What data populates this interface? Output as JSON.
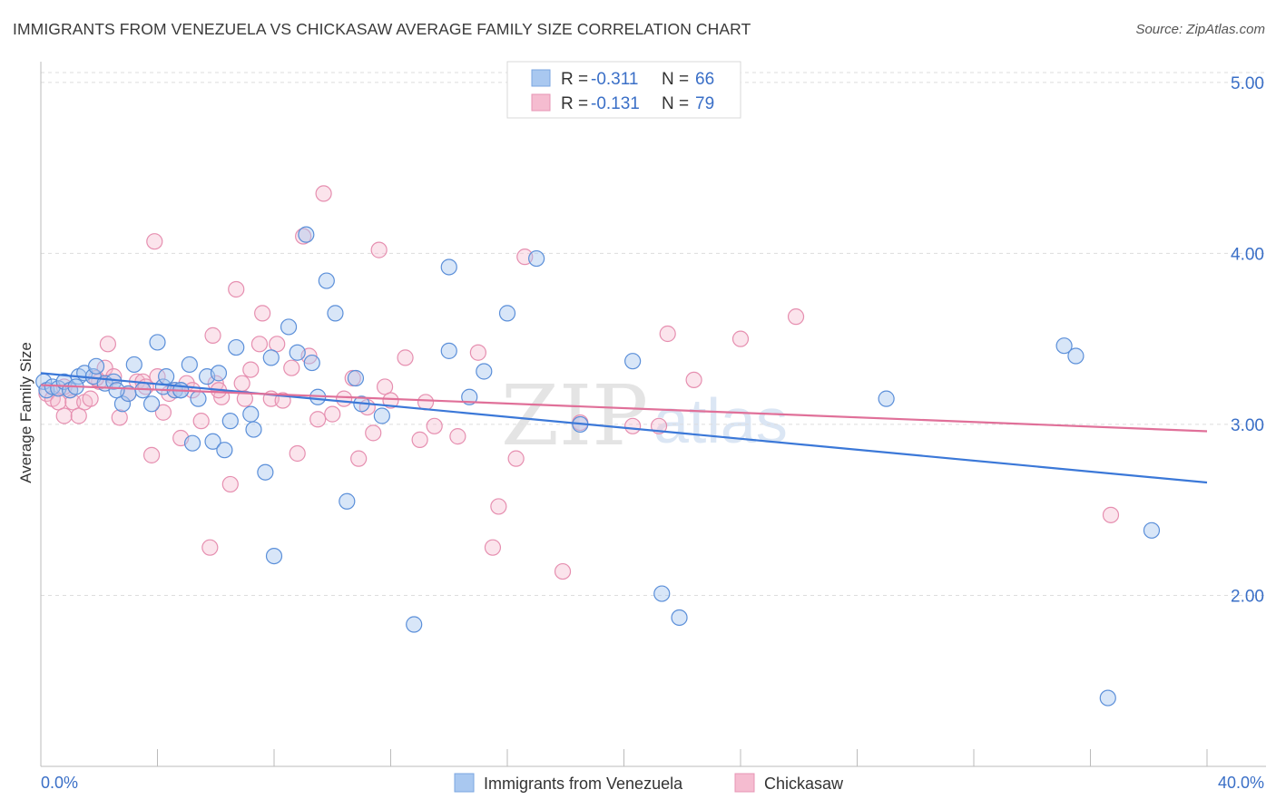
{
  "title": "IMMIGRANTS FROM VENEZUELA VS CHICKASAW AVERAGE FAMILY SIZE CORRELATION CHART",
  "source": "Source: ZipAtlas.com",
  "watermark": {
    "zip": "ZIP",
    "atlas": "atlas"
  },
  "colors": {
    "blue": "#3b78d8",
    "blue_fill": "#a9c8f0",
    "pink": "#e07099",
    "pink_fill": "#f5bcd0",
    "grid": "#dddddd",
    "axis_text": "#3a6fc7"
  },
  "legend": {
    "rows": [
      {
        "r_label": "R = ",
        "r_value": "-0.311",
        "n_label": "N = ",
        "n_value": "66",
        "series": "blue"
      },
      {
        "r_label": "R = ",
        "r_value": "-0.131",
        "n_label": "N = ",
        "n_value": "79",
        "series": "pink"
      }
    ]
  },
  "chart_data": {
    "type": "scatter",
    "title": "IMMIGRANTS FROM VENEZUELA VS CHICKASAW AVERAGE FAMILY SIZE CORRELATION CHART",
    "xlabel": "",
    "ylabel": "Average Family Size",
    "xlim": [
      0,
      40
    ],
    "ylim": [
      1.0,
      5.1
    ],
    "x_tick_labels": [
      "0.0%",
      "40.0%"
    ],
    "y_ticks": [
      2.0,
      3.0,
      4.0,
      5.0
    ],
    "y_tick_labels": [
      "2.00",
      "3.00",
      "4.00",
      "5.00"
    ],
    "grid": true,
    "legend_position": "top-center",
    "series": [
      {
        "name": "Immigrants from Venezuela",
        "color": "#3b78d8",
        "trend": {
          "x0": 0,
          "y0": 3.3,
          "x1": 40,
          "y1": 2.66
        },
        "points": [
          [
            0.1,
            3.25
          ],
          [
            0.2,
            3.2
          ],
          [
            0.4,
            3.22
          ],
          [
            0.6,
            3.21
          ],
          [
            0.8,
            3.25
          ],
          [
            1.0,
            3.2
          ],
          [
            1.3,
            3.28
          ],
          [
            1.5,
            3.3
          ],
          [
            1.8,
            3.28
          ],
          [
            1.9,
            3.34
          ],
          [
            2.2,
            3.24
          ],
          [
            2.5,
            3.25
          ],
          [
            2.8,
            3.12
          ],
          [
            3.0,
            3.18
          ],
          [
            3.2,
            3.35
          ],
          [
            3.5,
            3.2
          ],
          [
            3.8,
            3.12
          ],
          [
            4.0,
            3.48
          ],
          [
            4.2,
            3.22
          ],
          [
            4.3,
            3.28
          ],
          [
            4.6,
            3.2
          ],
          [
            4.8,
            3.2
          ],
          [
            5.1,
            3.35
          ],
          [
            5.2,
            2.89
          ],
          [
            5.4,
            3.15
          ],
          [
            5.7,
            3.28
          ],
          [
            5.9,
            2.9
          ],
          [
            6.1,
            3.3
          ],
          [
            6.3,
            2.85
          ],
          [
            6.5,
            3.02
          ],
          [
            6.7,
            3.45
          ],
          [
            7.2,
            3.06
          ],
          [
            7.3,
            2.97
          ],
          [
            7.7,
            2.72
          ],
          [
            7.9,
            3.39
          ],
          [
            8.0,
            2.23
          ],
          [
            8.5,
            3.57
          ],
          [
            8.8,
            3.42
          ],
          [
            9.1,
            4.11
          ],
          [
            9.3,
            3.36
          ],
          [
            9.5,
            3.16
          ],
          [
            9.8,
            3.84
          ],
          [
            10.1,
            3.65
          ],
          [
            10.5,
            2.55
          ],
          [
            10.8,
            3.27
          ],
          [
            11.0,
            3.12
          ],
          [
            11.7,
            3.05
          ],
          [
            12.8,
            1.83
          ],
          [
            14.0,
            3.92
          ],
          [
            14.0,
            3.43
          ],
          [
            14.7,
            3.16
          ],
          [
            15.2,
            3.31
          ],
          [
            16.0,
            3.65
          ],
          [
            17.0,
            3.97
          ],
          [
            18.5,
            3.0
          ],
          [
            20.3,
            3.37
          ],
          [
            21.3,
            2.01
          ],
          [
            21.9,
            1.87
          ],
          [
            29.0,
            3.15
          ],
          [
            35.1,
            3.46
          ],
          [
            35.5,
            3.4
          ],
          [
            38.1,
            2.38
          ],
          [
            36.6,
            1.4
          ],
          [
            4.8,
            3.2
          ],
          [
            2.6,
            3.2
          ],
          [
            1.2,
            3.22
          ]
        ]
      },
      {
        "name": "Chickasaw",
        "color": "#e07099",
        "trend": {
          "x0": 0,
          "y0": 3.23,
          "x1": 40,
          "y1": 2.96
        },
        "points": [
          [
            0.2,
            3.18
          ],
          [
            0.4,
            3.15
          ],
          [
            0.6,
            3.13
          ],
          [
            0.8,
            3.05
          ],
          [
            1.0,
            3.2
          ],
          [
            1.1,
            3.13
          ],
          [
            1.3,
            3.05
          ],
          [
            1.5,
            3.13
          ],
          [
            1.7,
            3.15
          ],
          [
            2.0,
            3.25
          ],
          [
            2.2,
            3.33
          ],
          [
            2.3,
            3.47
          ],
          [
            2.5,
            3.28
          ],
          [
            2.7,
            3.04
          ],
          [
            3.0,
            3.18
          ],
          [
            3.3,
            3.25
          ],
          [
            3.5,
            3.25
          ],
          [
            3.8,
            2.82
          ],
          [
            3.9,
            4.07
          ],
          [
            4.0,
            3.28
          ],
          [
            4.2,
            3.07
          ],
          [
            4.4,
            3.18
          ],
          [
            4.6,
            3.2
          ],
          [
            4.8,
            2.92
          ],
          [
            5.0,
            3.24
          ],
          [
            5.2,
            3.2
          ],
          [
            5.5,
            3.02
          ],
          [
            5.8,
            2.28
          ],
          [
            5.9,
            3.52
          ],
          [
            6.0,
            3.24
          ],
          [
            6.2,
            3.16
          ],
          [
            6.5,
            2.65
          ],
          [
            6.7,
            3.79
          ],
          [
            6.9,
            3.24
          ],
          [
            7.0,
            3.15
          ],
          [
            7.2,
            3.32
          ],
          [
            7.5,
            3.47
          ],
          [
            7.6,
            3.65
          ],
          [
            7.9,
            3.15
          ],
          [
            8.1,
            3.47
          ],
          [
            8.3,
            3.14
          ],
          [
            8.6,
            3.33
          ],
          [
            8.8,
            2.83
          ],
          [
            9.0,
            4.1
          ],
          [
            9.2,
            3.4
          ],
          [
            9.5,
            3.03
          ],
          [
            9.7,
            4.35
          ],
          [
            10.0,
            3.06
          ],
          [
            10.4,
            3.15
          ],
          [
            10.7,
            3.27
          ],
          [
            10.9,
            2.8
          ],
          [
            11.2,
            3.1
          ],
          [
            11.4,
            2.95
          ],
          [
            11.6,
            4.02
          ],
          [
            11.8,
            3.22
          ],
          [
            12.0,
            3.14
          ],
          [
            12.5,
            3.39
          ],
          [
            13.0,
            2.91
          ],
          [
            13.2,
            3.13
          ],
          [
            13.5,
            2.99
          ],
          [
            14.3,
            2.93
          ],
          [
            15.0,
            3.42
          ],
          [
            15.5,
            2.28
          ],
          [
            15.7,
            2.52
          ],
          [
            16.3,
            2.8
          ],
          [
            16.6,
            3.98
          ],
          [
            17.9,
            2.14
          ],
          [
            18.5,
            3.01
          ],
          [
            20.3,
            2.99
          ],
          [
            21.2,
            2.99
          ],
          [
            21.5,
            3.53
          ],
          [
            22.4,
            3.26
          ],
          [
            24.0,
            3.5
          ],
          [
            25.9,
            3.63
          ],
          [
            36.7,
            2.47
          ],
          [
            0.8,
            3.22
          ],
          [
            1.9,
            3.27
          ],
          [
            3.6,
            3.22
          ],
          [
            6.1,
            3.2
          ]
        ]
      }
    ]
  },
  "bottom_legend": [
    {
      "label": "Immigrants from Venezuela",
      "series": "blue"
    },
    {
      "label": "Chickasaw",
      "series": "pink"
    }
  ]
}
